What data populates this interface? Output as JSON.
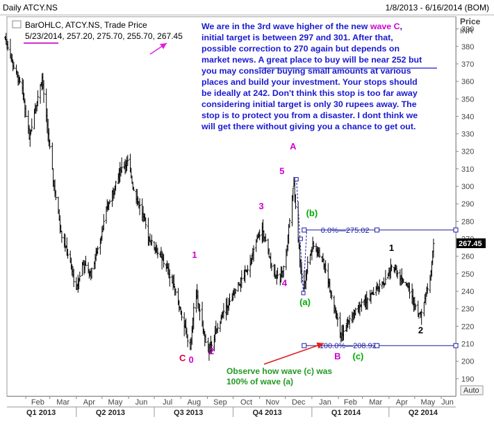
{
  "header": {
    "title": "Daily ATCY.NS",
    "date_range": "1/8/2013 - 6/16/2014 (BOM)"
  },
  "info_box": {
    "line1": "BarOHLC, ATCY.NS, Trade Price",
    "date": "5/23/2014",
    "values": ", 257.20, 275.70, 255.70, 267.45"
  },
  "annotation": {
    "lines": [
      [
        {
          "t": "We are in the 3rd wave higher of the new "
        },
        {
          "t": "wave C",
          "c": "#d000d0"
        },
        {
          "t": ","
        }
      ],
      [
        {
          "t": "initial target is between 297 and 301. After that,"
        }
      ],
      [
        {
          "t": "possible correction to 270 again but depends on"
        }
      ],
      [
        {
          "t": "market news. "
        },
        {
          "t": "A great place to buy will be near 252",
          "u": true
        },
        {
          "t": " but"
        }
      ],
      [
        {
          "t": "you may consider buying small amounts at various"
        }
      ],
      [
        {
          "t": "places and build your investment. Your stops should"
        }
      ],
      [
        {
          "t": "be ideally at 242. Don't think this stop is too far away"
        }
      ],
      [
        {
          "t": "considering initial target is only 30 rupees away. The"
        }
      ],
      [
        {
          "t": "stop is to protect you from a disaster. I dont think we"
        }
      ],
      [
        {
          "t": "will get there without giving you a chance to get out."
        }
      ]
    ]
  },
  "observe_note": [
    "Observe how wave (c) was",
    "100% of wave (a)"
  ],
  "y_axis": {
    "title_line1": "Price",
    "title_line2": "INR",
    "ticks": [
      190,
      200,
      210,
      220,
      230,
      240,
      250,
      260,
      270,
      280,
      290,
      300,
      310,
      320,
      330,
      340,
      350,
      360,
      370,
      380,
      390
    ],
    "last_price_label": "267.45",
    "auto_label": "Auto"
  },
  "x_axis": {
    "months": [
      "Feb",
      "Mar",
      "Apr",
      "May",
      "Jun",
      "Jul",
      "Aug",
      "Sep",
      "Oct",
      "Nov",
      "Dec",
      "Jan",
      "Feb",
      "Mar",
      "Apr",
      "May",
      "Jun"
    ],
    "quarters": [
      "Q1 2013",
      "Q2 2013",
      "Q3 2013",
      "Q4 2013",
      "Q1 2014",
      "Q2 2014"
    ]
  },
  "fib_levels": [
    {
      "label": "0.0%",
      "value_label": "275.02",
      "value": 275.02
    },
    {
      "label": "100.0%",
      "value_label": "208.92",
      "value": 208.92
    }
  ],
  "wave_labels": [
    {
      "t": "A",
      "color": "#d000d0",
      "date": "2013-12-10",
      "price": 321
    },
    {
      "t": "5",
      "color": "#d000d0",
      "date": "2013-11-27",
      "price": 307
    },
    {
      "t": "3",
      "color": "#d000d0",
      "date": "2013-11-03",
      "price": 287
    },
    {
      "t": "4",
      "color": "#d000d0",
      "date": "2013-11-30",
      "price": 243
    },
    {
      "t": "1",
      "color": "#d000d0",
      "date": "2013-08-17",
      "price": 259
    },
    {
      "t": "2",
      "color": "#d000d0",
      "date": "2013-09-06",
      "price": 204
    },
    {
      "t": "C",
      "color": "#e0003a",
      "date": "2013-08-03",
      "price": 200
    },
    {
      "t": "0",
      "color": "#d000d0",
      "date": "2013-08-13",
      "price": 199
    },
    {
      "t": "(b)",
      "color": "#00aa00",
      "date": "2014-01-01",
      "price": 283
    },
    {
      "t": "(a)",
      "color": "#00aa00",
      "date": "2013-12-24",
      "price": 232
    },
    {
      "t": "B",
      "color": "#d000d0",
      "date": "2014-01-31",
      "price": 201
    },
    {
      "t": "(c)",
      "color": "#00aa00",
      "date": "2014-02-24",
      "price": 201
    },
    {
      "t": "1",
      "color": "#000000",
      "date": "2014-04-04",
      "price": 263
    },
    {
      "t": "2",
      "color": "#000000",
      "date": "2014-05-08",
      "price": 216
    }
  ],
  "chart_data": {
    "type": "bar",
    "ylim": [
      180,
      397
    ],
    "xlim": [
      "2013-01-10",
      "2014-06-18"
    ],
    "ylabel": "Price INR",
    "anchors": [
      {
        "d": "2013-01-08",
        "p": 385
      },
      {
        "d": "2013-01-18",
        "p": 368
      },
      {
        "d": "2013-01-28",
        "p": 355
      },
      {
        "d": "2013-02-05",
        "p": 328
      },
      {
        "d": "2013-02-12",
        "p": 345
      },
      {
        "d": "2013-02-20",
        "p": 362
      },
      {
        "d": "2013-02-27",
        "p": 330
      },
      {
        "d": "2013-03-06",
        "p": 300
      },
      {
        "d": "2013-03-15",
        "p": 272
      },
      {
        "d": "2013-03-24",
        "p": 258
      },
      {
        "d": "2013-04-01",
        "p": 240
      },
      {
        "d": "2013-04-08",
        "p": 256
      },
      {
        "d": "2013-04-18",
        "p": 250
      },
      {
        "d": "2013-04-28",
        "p": 268
      },
      {
        "d": "2013-05-07",
        "p": 288
      },
      {
        "d": "2013-05-15",
        "p": 298
      },
      {
        "d": "2013-05-23",
        "p": 310
      },
      {
        "d": "2013-05-31",
        "p": 314
      },
      {
        "d": "2013-06-08",
        "p": 296
      },
      {
        "d": "2013-06-17",
        "p": 285
      },
      {
        "d": "2013-06-25",
        "p": 270
      },
      {
        "d": "2013-07-05",
        "p": 262
      },
      {
        "d": "2013-07-16",
        "p": 253
      },
      {
        "d": "2013-07-26",
        "p": 240
      },
      {
        "d": "2013-08-04",
        "p": 222
      },
      {
        "d": "2013-08-12",
        "p": 206
      },
      {
        "d": "2013-08-18",
        "p": 242
      },
      {
        "d": "2013-08-25",
        "p": 222
      },
      {
        "d": "2013-09-02",
        "p": 206
      },
      {
        "d": "2013-09-10",
        "p": 215
      },
      {
        "d": "2013-09-20",
        "p": 228
      },
      {
        "d": "2013-09-30",
        "p": 236
      },
      {
        "d": "2013-10-10",
        "p": 246
      },
      {
        "d": "2013-10-20",
        "p": 255
      },
      {
        "d": "2013-10-28",
        "p": 268
      },
      {
        "d": "2013-11-04",
        "p": 276
      },
      {
        "d": "2013-11-11",
        "p": 262
      },
      {
        "d": "2013-11-18",
        "p": 250
      },
      {
        "d": "2013-11-25",
        "p": 246
      },
      {
        "d": "2013-12-02",
        "p": 262
      },
      {
        "d": "2013-12-08",
        "p": 290
      },
      {
        "d": "2013-12-11",
        "p": 302
      },
      {
        "d": "2013-12-15",
        "p": 276
      },
      {
        "d": "2013-12-19",
        "p": 252
      },
      {
        "d": "2013-12-23",
        "p": 242
      },
      {
        "d": "2013-12-27",
        "p": 256
      },
      {
        "d": "2014-01-02",
        "p": 266
      },
      {
        "d": "2014-01-09",
        "p": 262
      },
      {
        "d": "2014-01-15",
        "p": 256
      },
      {
        "d": "2014-01-21",
        "p": 244
      },
      {
        "d": "2014-01-29",
        "p": 228
      },
      {
        "d": "2014-02-04",
        "p": 214
      },
      {
        "d": "2014-02-12",
        "p": 222
      },
      {
        "d": "2014-02-22",
        "p": 230
      },
      {
        "d": "2014-03-03",
        "p": 234
      },
      {
        "d": "2014-03-12",
        "p": 238
      },
      {
        "d": "2014-03-20",
        "p": 242
      },
      {
        "d": "2014-03-28",
        "p": 246
      },
      {
        "d": "2014-04-06",
        "p": 255
      },
      {
        "d": "2014-04-14",
        "p": 248
      },
      {
        "d": "2014-04-22",
        "p": 244
      },
      {
        "d": "2014-04-30",
        "p": 234
      },
      {
        "d": "2014-05-07",
        "p": 226
      },
      {
        "d": "2014-05-13",
        "p": 236
      },
      {
        "d": "2014-05-19",
        "p": 248
      },
      {
        "d": "2014-05-23",
        "p": 267
      }
    ],
    "bar_span": 2.6,
    "fib_lines": [
      {
        "value": 275.02
      },
      {
        "value": 208.92
      }
    ],
    "last_price": 267.45
  }
}
